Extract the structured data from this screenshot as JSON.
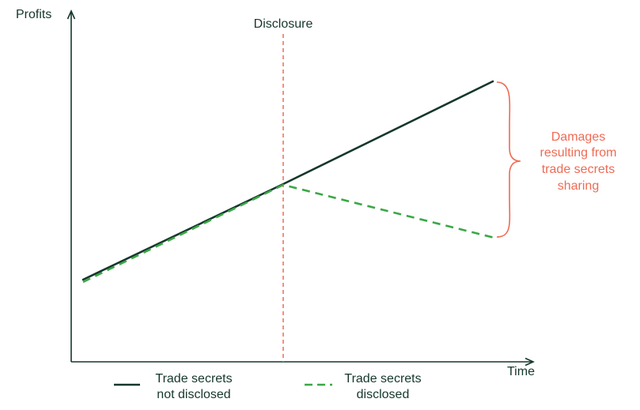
{
  "axes": {
    "y_label": "Profits",
    "x_label": "Time"
  },
  "event": {
    "label": "Disclosure"
  },
  "annotation": {
    "lines": [
      "Damages",
      "resulting from",
      "trade secrets",
      "sharing"
    ]
  },
  "legend": {
    "not_disclosed": [
      "Trade secrets",
      "not disclosed"
    ],
    "disclosed": [
      "Trade secrets",
      "disclosed"
    ]
  },
  "colors": {
    "axis": "#15372b",
    "not_disclosed_line": "#15372b",
    "disclosed_line": "#3aa845",
    "accent": "#ef6b55"
  }
}
